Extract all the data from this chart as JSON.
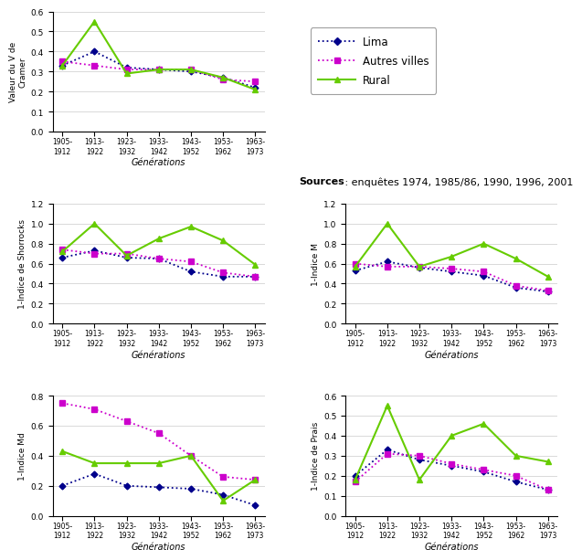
{
  "x_labels": [
    "1905-\n1912",
    "1913-\n1922",
    "1923-\n1932",
    "1933-\n1942",
    "1943-\n1952",
    "1953-\n1962",
    "1963-\n1973"
  ],
  "x_label_bottom": "Générations",
  "cramer": {
    "lima": [
      0.33,
      0.4,
      0.32,
      0.31,
      0.3,
      0.27,
      0.22
    ],
    "autres": [
      0.35,
      0.33,
      0.31,
      0.31,
      0.31,
      0.26,
      0.25
    ],
    "rural": [
      0.33,
      0.55,
      0.29,
      0.31,
      0.31,
      0.27,
      0.21
    ],
    "ylabel": "Valeur du V de\nCramer",
    "ylim": [
      0,
      0.6
    ],
    "yticks": [
      0,
      0.1,
      0.2,
      0.3,
      0.4,
      0.5,
      0.6
    ]
  },
  "shorrocks": {
    "lima": [
      0.66,
      0.73,
      0.66,
      0.65,
      0.52,
      0.47,
      0.47
    ],
    "autres": [
      0.74,
      0.7,
      0.7,
      0.65,
      0.62,
      0.51,
      0.47
    ],
    "rural": [
      0.72,
      1.0,
      0.68,
      0.85,
      0.97,
      0.83,
      0.59
    ],
    "ylabel": "1-Indice de Shorrocks",
    "ylim": [
      0,
      1.2
    ],
    "yticks": [
      0.0,
      0.2,
      0.4,
      0.6,
      0.8,
      1.0,
      1.2
    ]
  },
  "indice_m": {
    "lima": [
      0.53,
      0.62,
      0.56,
      0.52,
      0.48,
      0.36,
      0.32
    ],
    "autres": [
      0.6,
      0.57,
      0.57,
      0.55,
      0.52,
      0.38,
      0.33
    ],
    "rural": [
      0.57,
      1.0,
      0.57,
      0.67,
      0.8,
      0.65,
      0.47
    ],
    "ylabel": "1-Indice M",
    "ylim": [
      0,
      1.2
    ],
    "yticks": [
      0.0,
      0.2,
      0.4,
      0.6,
      0.8,
      1.0,
      1.2
    ]
  },
  "indice_md": {
    "lima": [
      0.2,
      0.28,
      0.2,
      0.19,
      0.18,
      0.14,
      0.07
    ],
    "autres": [
      0.75,
      0.71,
      0.63,
      0.55,
      0.4,
      0.26,
      0.24
    ],
    "rural": [
      0.43,
      0.35,
      0.35,
      0.35,
      0.4,
      0.1,
      0.24
    ],
    "ylabel": "1-Indice Md",
    "ylim": [
      0,
      0.8
    ],
    "yticks": [
      0.0,
      0.2,
      0.4,
      0.6,
      0.8
    ]
  },
  "indice_prais": {
    "lima": [
      0.2,
      0.33,
      0.28,
      0.25,
      0.22,
      0.17,
      0.13
    ],
    "autres": [
      0.17,
      0.31,
      0.3,
      0.26,
      0.23,
      0.2,
      0.13
    ],
    "rural": [
      0.18,
      0.55,
      0.18,
      0.4,
      0.46,
      0.3,
      0.27
    ],
    "ylabel": "1-Indice de Prais",
    "ylim": [
      0,
      0.6
    ],
    "yticks": [
      0.0,
      0.1,
      0.2,
      0.3,
      0.4,
      0.5,
      0.6
    ]
  },
  "lima_color": "#00008B",
  "autres_color": "#CC00CC",
  "rural_color": "#66CC00",
  "sources_bold": "Sources",
  "sources_rest": " : enquêtes 1974, 1985/86, 1990, 1996, 2001",
  "legend_labels": [
    "Lima",
    "Autres villes",
    "Rural"
  ]
}
